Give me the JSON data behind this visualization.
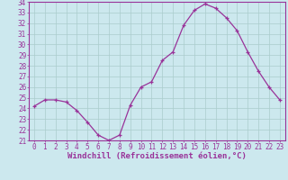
{
  "x": [
    0,
    1,
    2,
    3,
    4,
    5,
    6,
    7,
    8,
    9,
    10,
    11,
    12,
    13,
    14,
    15,
    16,
    17,
    18,
    19,
    20,
    21,
    22,
    23
  ],
  "y": [
    24.2,
    24.8,
    24.8,
    24.6,
    23.8,
    22.7,
    21.5,
    21.0,
    21.5,
    24.3,
    26.0,
    26.5,
    28.5,
    29.3,
    31.8,
    33.2,
    33.8,
    33.4,
    32.5,
    31.3,
    29.3,
    27.5,
    26.0,
    24.8
  ],
  "line_color": "#993399",
  "marker": "+",
  "bg_color": "#cce8ee",
  "grid_color": "#aacccc",
  "axis_color": "#993399",
  "border_color": "#993399",
  "xlabel": "Windchill (Refroidissement éolien,°C)",
  "ylabel": "",
  "xlim": [
    -0.5,
    23.5
  ],
  "ylim": [
    21,
    34
  ],
  "yticks": [
    21,
    22,
    23,
    24,
    25,
    26,
    27,
    28,
    29,
    30,
    31,
    32,
    33,
    34
  ],
  "xticks": [
    0,
    1,
    2,
    3,
    4,
    5,
    6,
    7,
    8,
    9,
    10,
    11,
    12,
    13,
    14,
    15,
    16,
    17,
    18,
    19,
    20,
    21,
    22,
    23
  ],
  "tick_fontsize": 5.5,
  "xlabel_fontsize": 6.5
}
